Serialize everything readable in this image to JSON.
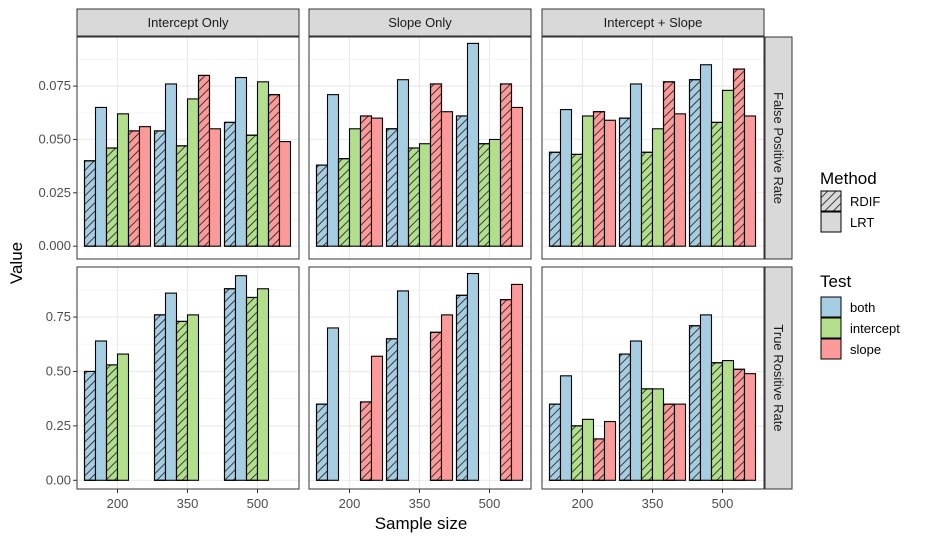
{
  "chart_data": {
    "type": "bar",
    "title": "",
    "xlabel": "Sample size",
    "ylabel": "Value",
    "categories": [
      "200",
      "350",
      "500"
    ],
    "facet_cols": [
      "Intercept Only",
      "Slope Only",
      "Intercept + Slope"
    ],
    "facet_rows": [
      "False Positive Rate",
      "True Rositive Rate"
    ],
    "bar_order": [
      {
        "test": "both",
        "method": "RDIF"
      },
      {
        "test": "both",
        "method": "LRT"
      },
      {
        "test": "intercept",
        "method": "RDIF"
      },
      {
        "test": "intercept",
        "method": "LRT"
      },
      {
        "test": "slope",
        "method": "RDIF"
      },
      {
        "test": "slope",
        "method": "LRT"
      }
    ],
    "rows": [
      {
        "ylim": [
          -0.006,
          0.098
        ],
        "ticks": [
          0.0,
          0.025,
          0.05,
          0.075
        ],
        "tick_labels": [
          "0.000",
          "0.025",
          "0.050",
          "0.075"
        ],
        "panels": [
          [
            [
              0.04,
              0.065,
              0.046,
              0.062,
              0.054,
              0.056
            ],
            [
              0.054,
              0.076,
              0.047,
              0.069,
              0.08,
              0.055
            ],
            [
              0.058,
              0.079,
              0.052,
              0.077,
              0.071,
              0.049
            ]
          ],
          [
            [
              0.038,
              0.071,
              0.041,
              0.055,
              0.061,
              0.06
            ],
            [
              0.055,
              0.078,
              0.046,
              0.048,
              0.076,
              0.063
            ],
            [
              0.061,
              0.095,
              0.048,
              0.05,
              0.076,
              0.065
            ]
          ],
          [
            [
              0.044,
              0.064,
              0.043,
              0.061,
              0.063,
              0.059
            ],
            [
              0.06,
              0.076,
              0.044,
              0.055,
              0.077,
              0.062
            ],
            [
              0.078,
              0.085,
              0.058,
              0.073,
              0.083,
              0.061
            ]
          ]
        ]
      },
      {
        "ylim": [
          -0.04,
          0.98
        ],
        "ticks": [
          0.0,
          0.25,
          0.5,
          0.75
        ],
        "tick_labels": [
          "0.00",
          "0.25",
          "0.50",
          "0.75"
        ],
        "panels": [
          [
            [
              0.5,
              0.64,
              0.53,
              0.58,
              0.0,
              0.0
            ],
            [
              0.76,
              0.86,
              0.73,
              0.76,
              0.0,
              0.0
            ],
            [
              0.88,
              0.94,
              0.84,
              0.88,
              0.0,
              0.0
            ]
          ],
          [
            [
              0.35,
              0.7,
              0.0,
              0.0,
              0.36,
              0.57
            ],
            [
              0.65,
              0.87,
              0.0,
              0.0,
              0.68,
              0.76
            ],
            [
              0.85,
              0.95,
              0.0,
              0.0,
              0.83,
              0.9
            ]
          ],
          [
            [
              0.35,
              0.48,
              0.25,
              0.28,
              0.19,
              0.27
            ],
            [
              0.58,
              0.64,
              0.42,
              0.42,
              0.35,
              0.35
            ],
            [
              0.71,
              0.76,
              0.54,
              0.55,
              0.51,
              0.49
            ]
          ]
        ]
      }
    ],
    "legend": {
      "placement": "right",
      "method_title": "Method",
      "methods": [
        "RDIF",
        "LRT"
      ],
      "test_title": "Test",
      "tests": [
        "both",
        "intercept",
        "slope"
      ]
    },
    "colors": {
      "both": "#a6cee3",
      "intercept": "#b2df8a",
      "slope": "#fb9a99",
      "strip_fill": "#d9d9d9",
      "grid_major": "#ebebeb",
      "grid_minor": "#f5f5f5",
      "axis_text": "#4d4d4d"
    }
  }
}
